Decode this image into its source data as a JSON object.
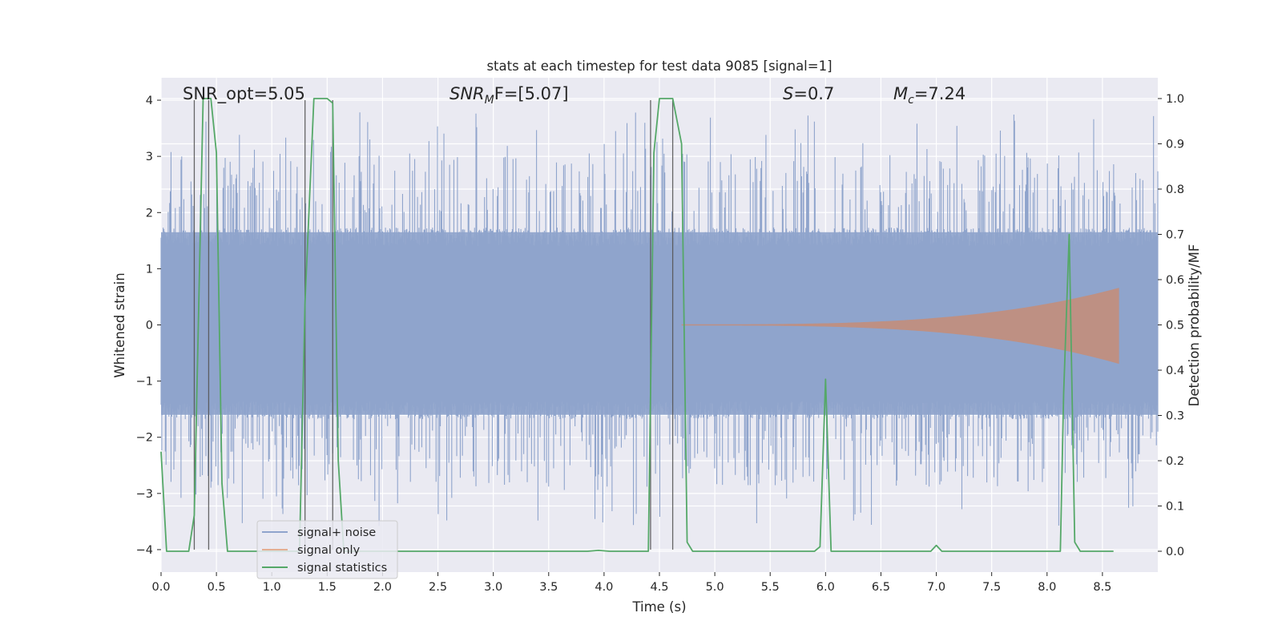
{
  "chart_data": {
    "type": "line",
    "title": "stats at each timestep for test data 9085 [signal=1]",
    "xlabel": "Time (s)",
    "ylabel": "Whitened strain",
    "y2label": "Detection probability/MF",
    "xlim": [
      0.0,
      9.0
    ],
    "ylim": [
      -4.4,
      4.4
    ],
    "y2lim": [
      -0.046,
      1.046
    ],
    "x_ticks": [
      "0.0",
      "0.5",
      "1.0",
      "1.5",
      "2.0",
      "2.5",
      "3.0",
      "3.5",
      "4.0",
      "4.5",
      "5.0",
      "5.5",
      "6.0",
      "6.5",
      "7.0",
      "7.5",
      "8.0",
      "8.5"
    ],
    "y_ticks": [
      "4",
      "3",
      "2",
      "1",
      "0",
      "−1",
      "−2",
      "−3",
      "−4"
    ],
    "y2_ticks": [
      "1.0",
      "0.9",
      "0.8",
      "0.7",
      "0.6",
      "0.5",
      "0.4",
      "0.3",
      "0.2",
      "0.1",
      "0.0"
    ],
    "grid": true,
    "legend_position": "lower-left",
    "annotations": {
      "snr_opt": "SNR_opt=5.05",
      "snr_mf_prefix": "SNR",
      "snr_mf_sub": "M",
      "snr_mf_rest": "F=[5.07]",
      "s_letter": "S",
      "s_rest": "=0.7",
      "mc_letter": "M",
      "mc_sub": "c",
      "mc_rest": "=7.24"
    },
    "colors": {
      "noise": "#8fa4cc",
      "signal": "#dd8452",
      "stats": "#55a868",
      "vlines": "#555555",
      "background": "#eaeaf2",
      "grid": "#ffffff"
    },
    "series": [
      {
        "name": "signal+ noise",
        "description_kind": "dense noise",
        "envelope_pos": 1.65,
        "envelope_neg": -1.6,
        "peak_range": [
          2.0,
          3.8
        ],
        "trough_range": [
          -1.8,
          -3.6
        ]
      },
      {
        "name": "signal only",
        "chirp_start": 4.7,
        "chirp_end": 8.65,
        "chirp_max_amplitude": 0.65
      },
      {
        "name": "signal statistics",
        "axis": "right",
        "x": [
          0.0,
          0.05,
          0.25,
          0.3,
          0.38,
          0.45,
          0.5,
          0.55,
          0.6,
          1.25,
          1.3,
          1.38,
          1.5,
          1.55,
          1.6,
          1.65,
          3.85,
          3.95,
          4.05,
          4.4,
          4.45,
          4.5,
          4.62,
          4.7,
          4.75,
          4.8,
          5.9,
          5.95,
          6.0,
          6.05,
          6.1,
          6.95,
          7.0,
          7.05,
          8.12,
          8.15,
          8.2,
          8.25,
          8.3,
          8.6
        ],
        "y": [
          0.22,
          0.0,
          0.0,
          0.08,
          1.0,
          1.0,
          0.88,
          0.15,
          0.0,
          0.0,
          0.55,
          1.0,
          1.0,
          0.99,
          0.2,
          0.0,
          0.0,
          0.002,
          0.0,
          0.0,
          0.88,
          1.0,
          1.0,
          0.9,
          0.02,
          0.0,
          0.0,
          0.01,
          0.38,
          0.0,
          0.0,
          0.0,
          0.013,
          0.0,
          0.0,
          0.35,
          0.7,
          0.02,
          0.0,
          0.0
        ]
      }
    ],
    "vertical_lines_x": [
      0.3,
      0.43,
      1.3,
      1.55,
      4.42,
      4.62
    ]
  },
  "legend": {
    "noise_label": "signal+ noise",
    "signal_label": "signal only",
    "stats_label": "signal statistics"
  }
}
